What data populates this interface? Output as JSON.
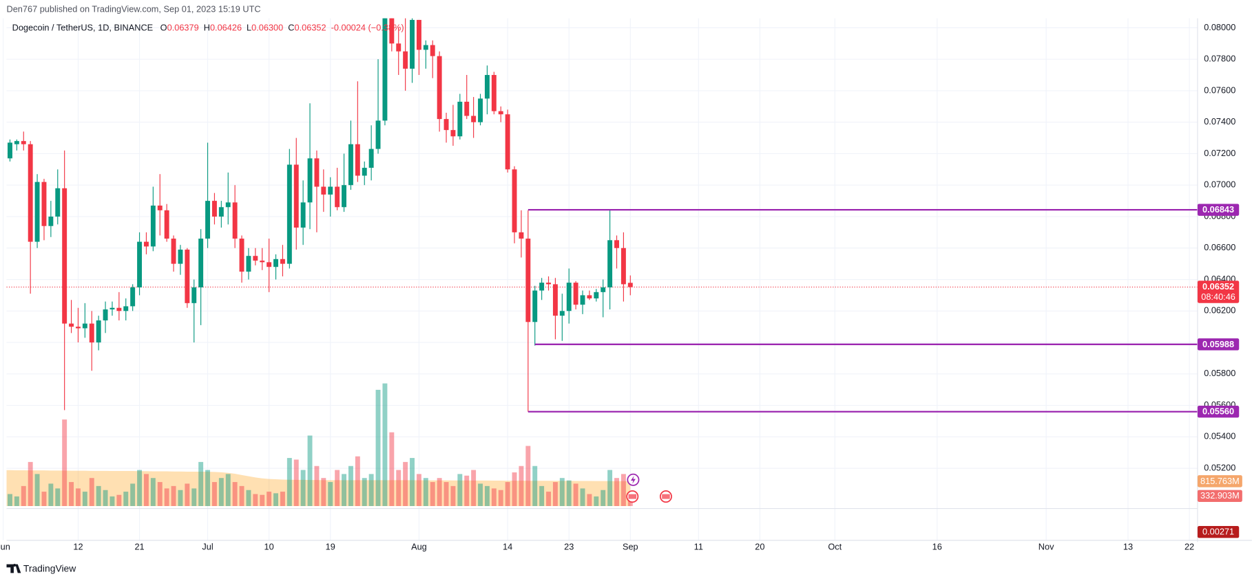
{
  "chart_data": {
    "type": "candlestick",
    "attribution": "Den767 published on TradingView.com, Sep 01, 2023 15:19 UTC",
    "legend": {
      "symbol": "Dogecoin / TetherUS, 1D, BINANCE",
      "open_label": "O",
      "open": "0.06379",
      "high_label": "H",
      "high": "0.06426",
      "low_label": "L",
      "low": "0.06300",
      "close_label": "C",
      "close": "0.06352",
      "change": "-0.00024 (−0.38%)"
    },
    "ohlc": [
      [
        0.0727,
        0.0733,
        0.0713,
        0.0717
      ],
      [
        0.0717,
        0.0729,
        0.0715,
        0.0727
      ],
      [
        0.0726,
        0.0729,
        0.0722,
        0.0728
      ],
      [
        0.0728,
        0.0734,
        0.0722,
        0.0726
      ],
      [
        0.0726,
        0.0728,
        0.0631,
        0.0664
      ],
      [
        0.0664,
        0.0707,
        0.066,
        0.0702
      ],
      [
        0.0702,
        0.0704,
        0.0665,
        0.0674
      ],
      [
        0.0674,
        0.069,
        0.0667,
        0.068
      ],
      [
        0.068,
        0.071,
        0.0675,
        0.0698
      ],
      [
        0.0698,
        0.0722,
        0.0557,
        0.0612
      ],
      [
        0.0612,
        0.0627,
        0.0606,
        0.061
      ],
      [
        0.061,
        0.0622,
        0.06,
        0.0609
      ],
      [
        0.0609,
        0.0625,
        0.0603,
        0.0612
      ],
      [
        0.0612,
        0.062,
        0.0582,
        0.06
      ],
      [
        0.06,
        0.0617,
        0.0595,
        0.0614
      ],
      [
        0.0614,
        0.0626,
        0.0606,
        0.0621
      ],
      [
        0.0621,
        0.0626,
        0.0617,
        0.0622
      ],
      [
        0.0622,
        0.0632,
        0.0614,
        0.062
      ],
      [
        0.062,
        0.0628,
        0.0614,
        0.0623
      ],
      [
        0.0623,
        0.0637,
        0.062,
        0.0635
      ],
      [
        0.0635,
        0.067,
        0.063,
        0.0664
      ],
      [
        0.0664,
        0.067,
        0.0656,
        0.0661
      ],
      [
        0.0661,
        0.0699,
        0.0658,
        0.0687
      ],
      [
        0.0687,
        0.0707,
        0.0668,
        0.0684
      ],
      [
        0.0684,
        0.0688,
        0.0664,
        0.0666
      ],
      [
        0.0666,
        0.0668,
        0.0645,
        0.065
      ],
      [
        0.065,
        0.0662,
        0.0643,
        0.0659
      ],
      [
        0.0659,
        0.066,
        0.0622,
        0.0625
      ],
      [
        0.0625,
        0.064,
        0.06,
        0.0635
      ],
      [
        0.0635,
        0.0672,
        0.0611,
        0.0666
      ],
      [
        0.0666,
        0.0727,
        0.066,
        0.069
      ],
      [
        0.069,
        0.0695,
        0.0675,
        0.068
      ],
      [
        0.068,
        0.069,
        0.0673,
        0.0686
      ],
      [
        0.0686,
        0.0708,
        0.0675,
        0.0689
      ],
      [
        0.0689,
        0.07,
        0.066,
        0.0666
      ],
      [
        0.0666,
        0.0668,
        0.0638,
        0.0645
      ],
      [
        0.0645,
        0.066,
        0.064,
        0.0655
      ],
      [
        0.0655,
        0.066,
        0.0649,
        0.0652
      ],
      [
        0.0652,
        0.066,
        0.0646,
        0.0651
      ],
      [
        0.0651,
        0.0666,
        0.0632,
        0.0648
      ],
      [
        0.0648,
        0.0656,
        0.064,
        0.0653
      ],
      [
        0.0653,
        0.0662,
        0.0642,
        0.065
      ],
      [
        0.065,
        0.0723,
        0.0647,
        0.0713
      ],
      [
        0.0713,
        0.073,
        0.0659,
        0.0673
      ],
      [
        0.0673,
        0.0703,
        0.0662,
        0.0689
      ],
      [
        0.0689,
        0.0752,
        0.0672,
        0.0717
      ],
      [
        0.0717,
        0.0722,
        0.067,
        0.0699
      ],
      [
        0.0699,
        0.071,
        0.0683,
        0.0694
      ],
      [
        0.0694,
        0.0705,
        0.068,
        0.0699
      ],
      [
        0.0699,
        0.0711,
        0.0684,
        0.0686
      ],
      [
        0.0686,
        0.072,
        0.0683,
        0.07
      ],
      [
        0.07,
        0.0741,
        0.0697,
        0.0726
      ],
      [
        0.0726,
        0.0766,
        0.0702,
        0.0706
      ],
      [
        0.0706,
        0.0715,
        0.07,
        0.0711
      ],
      [
        0.0711,
        0.0738,
        0.0703,
        0.0723
      ],
      [
        0.0723,
        0.078,
        0.072,
        0.0741
      ],
      [
        0.0741,
        0.083,
        0.0738,
        0.082
      ],
      [
        0.082,
        0.0825,
        0.0785,
        0.079
      ],
      [
        0.079,
        0.08,
        0.077,
        0.0785
      ],
      [
        0.0785,
        0.081,
        0.076,
        0.0774
      ],
      [
        0.0774,
        0.081,
        0.0765,
        0.0805
      ],
      [
        0.0805,
        0.0805,
        0.077,
        0.0786
      ],
      [
        0.0786,
        0.0792,
        0.0774,
        0.0789
      ],
      [
        0.0789,
        0.0792,
        0.0768,
        0.0782
      ],
      [
        0.0782,
        0.0785,
        0.0734,
        0.0742
      ],
      [
        0.0742,
        0.0746,
        0.0727,
        0.0735
      ],
      [
        0.0735,
        0.0751,
        0.0725,
        0.0731
      ],
      [
        0.0731,
        0.0758,
        0.0729,
        0.0753
      ],
      [
        0.0753,
        0.077,
        0.0742,
        0.0744
      ],
      [
        0.0744,
        0.0756,
        0.073,
        0.074
      ],
      [
        0.074,
        0.0758,
        0.0738,
        0.0755
      ],
      [
        0.0755,
        0.0776,
        0.0745,
        0.077
      ],
      [
        0.077,
        0.0772,
        0.0745,
        0.0747
      ],
      [
        0.0747,
        0.075,
        0.074,
        0.0745
      ],
      [
        0.0745,
        0.0748,
        0.0708,
        0.071
      ],
      [
        0.071,
        0.0712,
        0.0663,
        0.067
      ],
      [
        0.067,
        0.0684,
        0.0654,
        0.0666
      ],
      [
        0.0666,
        0.0684,
        0.0556,
        0.0613
      ],
      [
        0.0613,
        0.0636,
        0.0598,
        0.0633
      ],
      [
        0.0633,
        0.0641,
        0.0627,
        0.0638
      ],
      [
        0.0638,
        0.0642,
        0.0633,
        0.0637
      ],
      [
        0.0637,
        0.0641,
        0.0602,
        0.0617
      ],
      [
        0.0617,
        0.0631,
        0.0601,
        0.062
      ],
      [
        0.062,
        0.0647,
        0.0612,
        0.0638
      ],
      [
        0.0638,
        0.0639,
        0.0621,
        0.0624
      ],
      [
        0.0624,
        0.0633,
        0.0618,
        0.063
      ],
      [
        0.063,
        0.0633,
        0.0627,
        0.0628
      ],
      [
        0.0628,
        0.0634,
        0.0626,
        0.0632
      ],
      [
        0.0632,
        0.064,
        0.0616,
        0.0635
      ],
      [
        0.0635,
        0.0684,
        0.0621,
        0.0665
      ],
      [
        0.0665,
        0.0668,
        0.0647,
        0.066
      ],
      [
        0.066,
        0.067,
        0.0626,
        0.0637
      ],
      [
        0.06379,
        0.06426,
        0.063,
        0.06352
      ]
    ],
    "volumes": [
      526,
      395,
      316,
      658,
      1447,
      1052,
      473,
      736,
      579,
      2840,
      789,
      579,
      473,
      921,
      658,
      526,
      316,
      368,
      473,
      736,
      1184,
      1052,
      921,
      789,
      579,
      658,
      526,
      736,
      579,
      1447,
      1184,
      789,
      921,
      1052,
      789,
      658,
      526,
      395,
      368,
      473,
      421,
      473,
      1578,
      1525,
      1184,
      2314,
      1315,
      921,
      789,
      1184,
      1052,
      1315,
      1631,
      921,
      1052,
      3814,
      4024,
      2420,
      1184,
      1447,
      1578,
      1052,
      921,
      789,
      921,
      789,
      658,
      1052,
      999,
      1184,
      736,
      658,
      579,
      526,
      789,
      1105,
      1315,
      1973,
      1315,
      658,
      473,
      789,
      921,
      842,
      736,
      579,
      395,
      316,
      526,
      1184,
      921,
      1052,
      332.903
    ],
    "volume_ma": [
      1180,
      1180,
      1175,
      1175,
      1170,
      1170,
      1170,
      1165,
      1165,
      1165,
      1160,
      1160,
      1160,
      1155,
      1155,
      1155,
      1150,
      1150,
      1150,
      1150,
      1145,
      1145,
      1140,
      1140,
      1140,
      1135,
      1135,
      1130,
      1130,
      1130,
      1125,
      1120,
      1110,
      1090,
      1060,
      1020,
      980,
      940,
      910,
      890,
      880,
      870,
      865,
      860,
      860,
      855,
      855,
      850,
      850,
      850,
      850,
      850,
      850,
      850,
      850,
      850,
      850,
      850,
      850,
      850,
      850,
      848,
      846,
      845,
      844,
      843,
      842,
      841,
      840,
      839,
      838,
      837,
      836,
      835,
      834,
      833,
      832,
      831,
      830,
      830,
      829,
      828,
      827,
      826,
      825,
      824,
      823,
      822,
      821,
      820,
      819,
      818,
      815.763
    ],
    "volume_lim": [
      0,
      16000
    ],
    "volume_labels": [
      {
        "value": 815.763,
        "label": "815.763M",
        "color": "#f5a66b"
      },
      {
        "value": 332.903,
        "label": "332.903M",
        "color": "#f26d6d"
      }
    ],
    "colors": {
      "up": "#089981",
      "down": "#f23645",
      "up_volume": "rgba(8,153,129,0.45)",
      "down_volume": "rgba(242,54,69,0.45)",
      "volume_ma": "rgba(255,152,0,0.3)",
      "level": "#9c27b0"
    },
    "xlim": [
      0.5,
      175.2
    ],
    "xticks": [
      {
        "value": 0,
        "label": "Jun"
      },
      {
        "value": 11,
        "label": "12"
      },
      {
        "value": 20,
        "label": "21"
      },
      {
        "value": 30,
        "label": "Jul"
      },
      {
        "value": 39,
        "label": "10"
      },
      {
        "value": 48,
        "label": "19"
      },
      {
        "value": 61,
        "label": "Aug"
      },
      {
        "value": 74,
        "label": "14"
      },
      {
        "value": 83,
        "label": "23"
      },
      {
        "value": 92,
        "label": "Sep"
      },
      {
        "value": 102,
        "label": "11"
      },
      {
        "value": 111,
        "label": "20"
      },
      {
        "value": 122,
        "label": "Oct"
      },
      {
        "value": 137,
        "label": "16"
      },
      {
        "value": 153,
        "label": "Nov"
      },
      {
        "value": 165,
        "label": "13"
      },
      {
        "value": 174,
        "label": "22"
      }
    ],
    "ylim": [
      0.0496,
      0.0806
    ],
    "yticks": [
      {
        "value": 0.052,
        "label": "0.05200"
      },
      {
        "value": 0.054,
        "label": "0.05400"
      },
      {
        "value": 0.056,
        "label": "0.05600"
      },
      {
        "value": 0.058,
        "label": "0.05800"
      },
      {
        "value": 0.06,
        "label": "0.06000"
      },
      {
        "value": 0.062,
        "label": "0.06200"
      },
      {
        "value": 0.064,
        "label": "0.06400"
      },
      {
        "value": 0.066,
        "label": "0.06600"
      },
      {
        "value": 0.068,
        "label": "0.06800"
      },
      {
        "value": 0.07,
        "label": "0.07000"
      },
      {
        "value": 0.072,
        "label": "0.07200"
      },
      {
        "value": 0.074,
        "label": "0.07400"
      },
      {
        "value": 0.076,
        "label": "0.07600"
      },
      {
        "value": 0.078,
        "label": "0.07800"
      },
      {
        "value": 0.08,
        "label": "0.08000"
      }
    ],
    "grid": true,
    "levels": [
      {
        "value": 0.06843,
        "label": "0.06843",
        "x": 77
      },
      {
        "value": 0.05988,
        "label": "0.05988",
        "x": 78
      },
      {
        "value": 0.0556,
        "label": "0.05560",
        "x": 77
      }
    ],
    "price_line": {
      "value": 0.06352,
      "label": "0.06352",
      "countdown": "08:40:46"
    },
    "indicator_label": "0.00271",
    "brand": "TradingView"
  }
}
